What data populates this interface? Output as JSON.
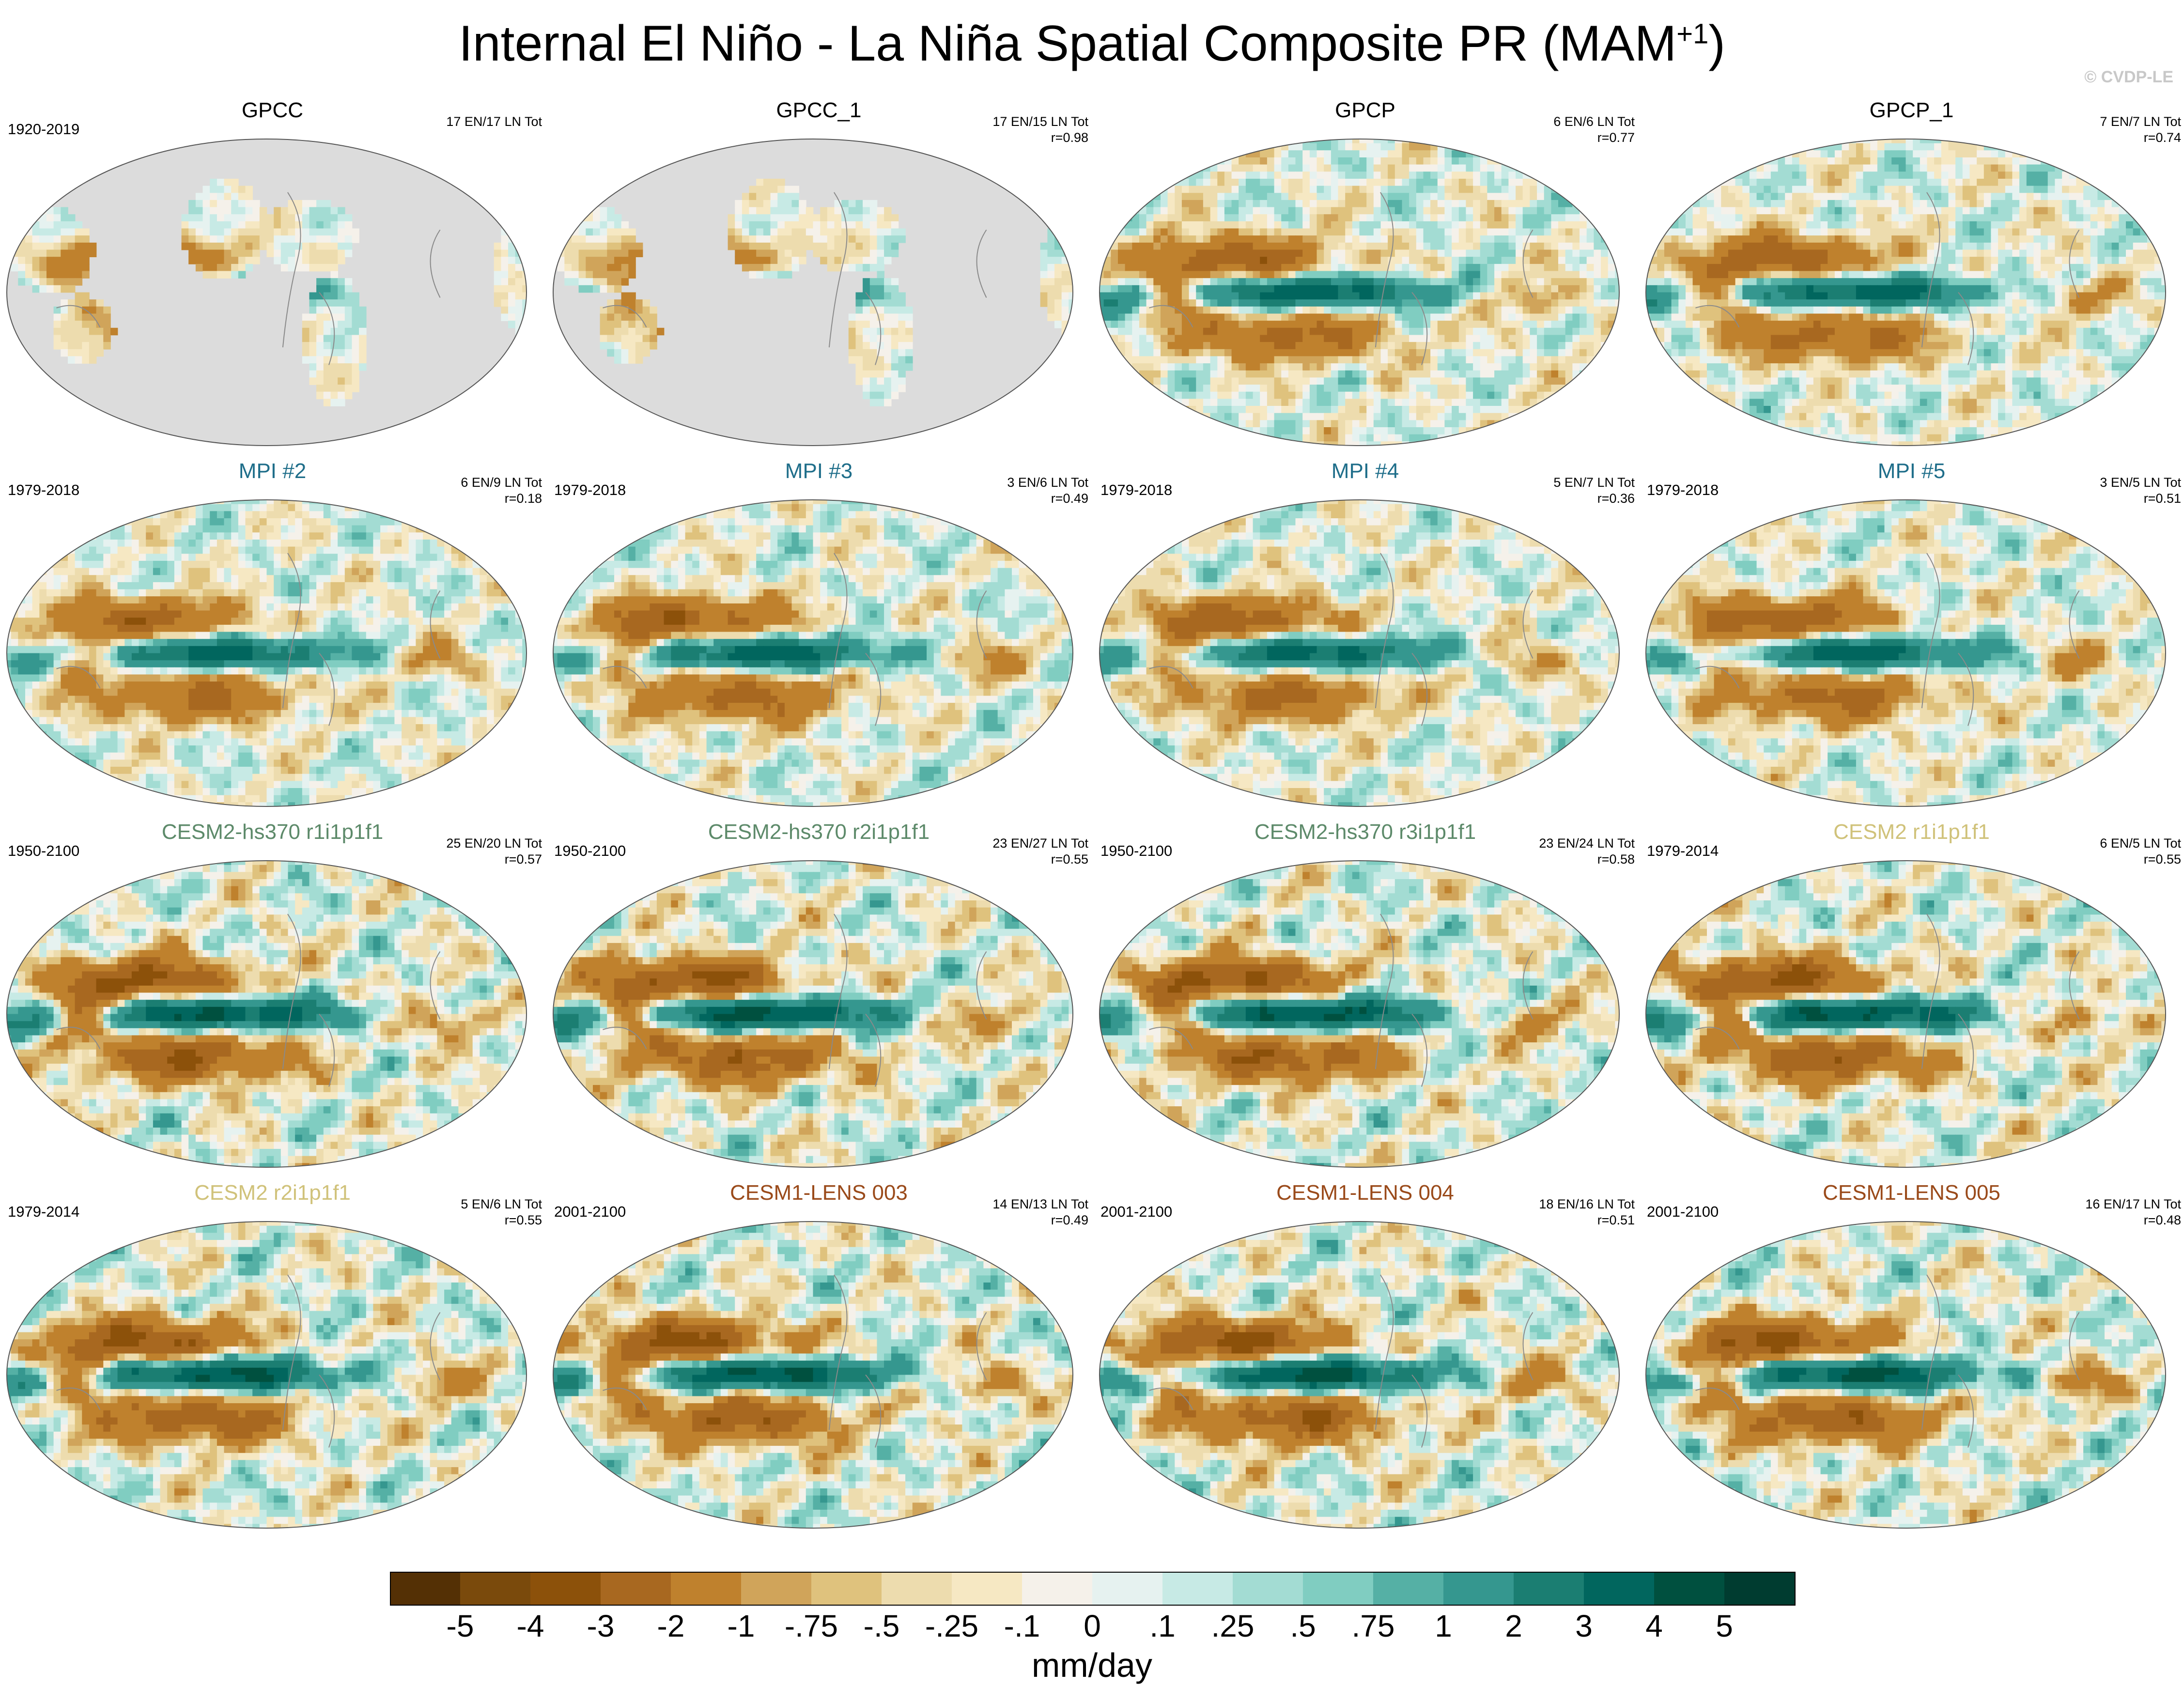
{
  "title_main": "Internal El Niño - La Niña Spatial Composite PR (MAM",
  "title_sup": "+1",
  "title_end": ")",
  "credit": "© CVDP-LE",
  "chart_data": {
    "type": "heatmap",
    "title": "Internal El Niño - La Niña Spatial Composite PR (MAM+1)",
    "units": "mm/day",
    "colorbar": {
      "labels": [
        "-5",
        "-4",
        "-3",
        "-2",
        "-1",
        "-.75",
        "-.5",
        "-.25",
        "-.1",
        "0",
        ".1",
        ".25",
        ".5",
        ".75",
        "1",
        "2",
        "3",
        "4",
        "5"
      ],
      "colors": [
        "#543005",
        "#7a4a0c",
        "#8c510a",
        "#a86820",
        "#bf812d",
        "#d0a45a",
        "#dfc27d",
        "#eddcae",
        "#f6e8c3",
        "#f5f1ea",
        "#e6f2f0",
        "#c7eae5",
        "#a3dcd3",
        "#80cdc1",
        "#55b0a5",
        "#35978f",
        "#1b7e72",
        "#01665e",
        "#00503f",
        "#003c30"
      ]
    },
    "panels": [
      {
        "name": "GPCC",
        "name_color": "#000000",
        "years": "1920-2019",
        "counts": "17 EN/17 LN Tot",
        "r": "",
        "mask": true,
        "amp": 0.55,
        "seed": 11
      },
      {
        "name": "GPCC_1",
        "name_color": "#000000",
        "years": "",
        "counts": "17 EN/15 LN Tot",
        "r": "r=0.98",
        "mask": true,
        "amp": 0.55,
        "seed": 12
      },
      {
        "name": "GPCP",
        "name_color": "#000000",
        "years": "",
        "counts": "6 EN/6 LN Tot",
        "r": "r=0.77",
        "mask": false,
        "amp": 0.85,
        "seed": 13
      },
      {
        "name": "GPCP_1",
        "name_color": "#000000",
        "years": "",
        "counts": "7 EN/7 LN Tot",
        "r": "r=0.74",
        "mask": false,
        "amp": 0.85,
        "seed": 14
      },
      {
        "name": "MPI #2",
        "name_color": "#1f6e8a",
        "years": "1979-2018",
        "counts": "6 EN/9 LN Tot",
        "r": "r=0.18",
        "mask": false,
        "amp": 0.8,
        "seed": 21
      },
      {
        "name": "MPI #3",
        "name_color": "#1f6e8a",
        "years": "1979-2018",
        "counts": "3 EN/6 LN Tot",
        "r": "r=0.49",
        "mask": false,
        "amp": 0.85,
        "seed": 22
      },
      {
        "name": "MPI #4",
        "name_color": "#1f6e8a",
        "years": "1979-2018",
        "counts": "5 EN/7 LN Tot",
        "r": "r=0.36",
        "mask": false,
        "amp": 0.8,
        "seed": 23
      },
      {
        "name": "MPI #5",
        "name_color": "#1f6e8a",
        "years": "1979-2018",
        "counts": "3 EN/5 LN Tot",
        "r": "r=0.51",
        "mask": false,
        "amp": 0.85,
        "seed": 24
      },
      {
        "name": "CESM2-hs370 r1i1p1f1",
        "name_color": "#5d8a6a",
        "years": "1950-2100",
        "counts": "25 EN/20 LN Tot",
        "r": "r=0.57",
        "mask": false,
        "amp": 1.0,
        "seed": 31
      },
      {
        "name": "CESM2-hs370 r2i1p1f1",
        "name_color": "#5d8a6a",
        "years": "1950-2100",
        "counts": "23 EN/27 LN Tot",
        "r": "r=0.55",
        "mask": false,
        "amp": 1.0,
        "seed": 32
      },
      {
        "name": "CESM2-hs370 r3i1p1f1",
        "name_color": "#5d8a6a",
        "years": "1950-2100",
        "counts": "23 EN/24 LN Tot",
        "r": "r=0.58",
        "mask": false,
        "amp": 1.0,
        "seed": 33
      },
      {
        "name": "CESM2 r1i1p1f1",
        "name_color": "#d0c27a",
        "years": "1979-2014",
        "counts": "6 EN/5 LN Tot",
        "r": "r=0.55",
        "mask": false,
        "amp": 1.0,
        "seed": 34
      },
      {
        "name": "CESM2 r2i1p1f1",
        "name_color": "#d0c27a",
        "years": "1979-2014",
        "counts": "5 EN/6 LN Tot",
        "r": "r=0.55",
        "mask": false,
        "amp": 1.0,
        "seed": 41
      },
      {
        "name": "CESM1-LENS 003",
        "name_color": "#9a4a1a",
        "years": "2001-2100",
        "counts": "14 EN/13 LN Tot",
        "r": "r=0.49",
        "mask": false,
        "amp": 1.0,
        "seed": 42
      },
      {
        "name": "CESM1-LENS 004",
        "name_color": "#9a4a1a",
        "years": "2001-2100",
        "counts": "18 EN/16 LN Tot",
        "r": "r=0.51",
        "mask": false,
        "amp": 1.0,
        "seed": 43
      },
      {
        "name": "CESM1-LENS 005",
        "name_color": "#9a4a1a",
        "years": "2001-2100",
        "counts": "16 EN/17 LN Tot",
        "r": "r=0.48",
        "mask": false,
        "amp": 1.0,
        "seed": 44
      }
    ]
  }
}
